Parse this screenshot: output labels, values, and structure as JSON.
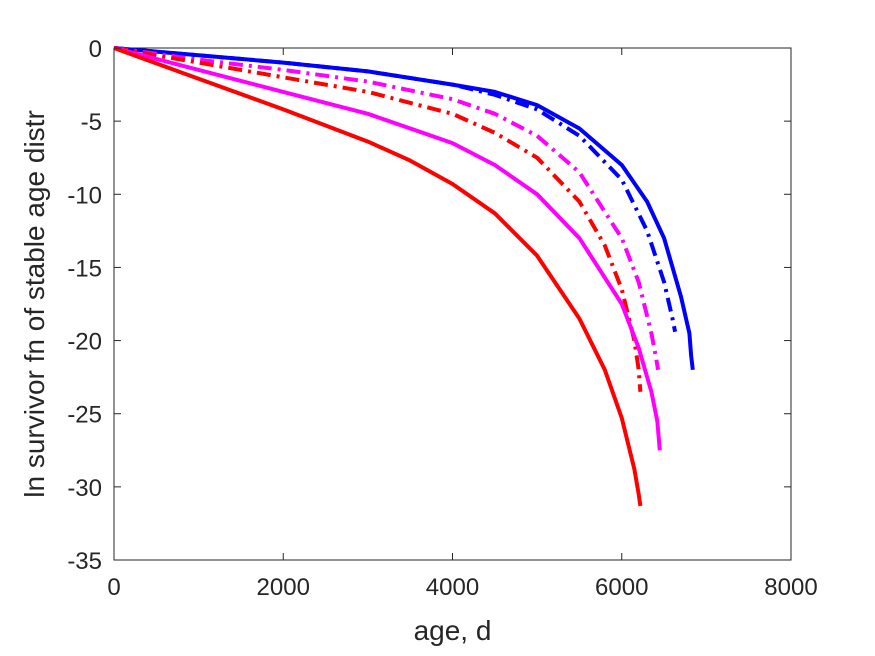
{
  "chart_data": {
    "type": "line",
    "title": "",
    "xlabel": "age, d",
    "ylabel": "ln survivor fn of stable age distr",
    "xlim": [
      0,
      8000
    ],
    "ylim": [
      -35,
      0
    ],
    "xticks": [
      0,
      2000,
      4000,
      6000,
      8000
    ],
    "yticks": [
      0,
      -5,
      -10,
      -15,
      -20,
      -25,
      -30,
      -35
    ],
    "xtick_labels": [
      "0",
      "2000",
      "4000",
      "6000",
      "8000"
    ],
    "ytick_labels": [
      "0",
      "-5",
      "-10",
      "-15",
      "-20",
      "-25",
      "-30",
      "-35"
    ],
    "grid": false,
    "legend": "none",
    "series": [
      {
        "color": "#0000ff",
        "style": "solid",
        "x": [
          0,
          1000,
          2000,
          3000,
          4000,
          4500,
          5000,
          5500,
          6000,
          6300,
          6500,
          6700,
          6800,
          6820,
          6840
        ],
        "y": [
          0,
          -0.5,
          -1.0,
          -1.6,
          -2.5,
          -3.0,
          -3.9,
          -5.5,
          -8.0,
          -10.5,
          -13.0,
          -17.0,
          -19.5,
          -21.0,
          -22.0
        ]
      },
      {
        "color": "#0000ff",
        "style": "dashdot",
        "x": [
          0,
          1000,
          2000,
          3000,
          4000,
          4500,
          5000,
          5500,
          6000,
          6300,
          6500,
          6600,
          6630
        ],
        "y": [
          0,
          -0.5,
          -1.0,
          -1.6,
          -2.5,
          -3.2,
          -4.2,
          -6.0,
          -9.0,
          -12.5,
          -16.0,
          -18.5,
          -19.4
        ]
      },
      {
        "color": "#ff00ff",
        "style": "dashdot",
        "x": [
          0,
          1000,
          2000,
          3000,
          4000,
          4500,
          5000,
          5500,
          6000,
          6200,
          6350,
          6400,
          6430
        ],
        "y": [
          0,
          -0.8,
          -1.5,
          -2.3,
          -3.5,
          -4.5,
          -6.0,
          -8.5,
          -13.0,
          -16.0,
          -19.5,
          -21.0,
          -22.0
        ]
      },
      {
        "color": "#ff0000",
        "style": "dashdot",
        "x": [
          0,
          1000,
          2000,
          3000,
          4000,
          4500,
          5000,
          5500,
          5800,
          6000,
          6150,
          6200,
          6220
        ],
        "y": [
          0,
          -1.0,
          -2.0,
          -3.0,
          -4.5,
          -5.8,
          -7.5,
          -10.5,
          -13.5,
          -16.5,
          -20.0,
          -22.0,
          -23.5
        ]
      },
      {
        "color": "#ff00ff",
        "style": "solid",
        "x": [
          0,
          1000,
          2000,
          3000,
          4000,
          4500,
          5000,
          5500,
          6000,
          6200,
          6350,
          6420,
          6450
        ],
        "y": [
          0,
          -1.5,
          -3.0,
          -4.5,
          -6.5,
          -8.0,
          -10.0,
          -13.0,
          -17.5,
          -20.5,
          -23.5,
          -25.5,
          -27.5
        ]
      },
      {
        "color": "#ff0000",
        "style": "solid",
        "x": [
          0,
          1000,
          2000,
          3000,
          3500,
          4000,
          4500,
          5000,
          5500,
          5800,
          6000,
          6150,
          6200,
          6220
        ],
        "y": [
          0,
          -2.1,
          -4.2,
          -6.4,
          -7.7,
          -9.3,
          -11.3,
          -14.2,
          -18.5,
          -22.0,
          -25.3,
          -28.8,
          -30.5,
          -31.3
        ]
      }
    ]
  }
}
